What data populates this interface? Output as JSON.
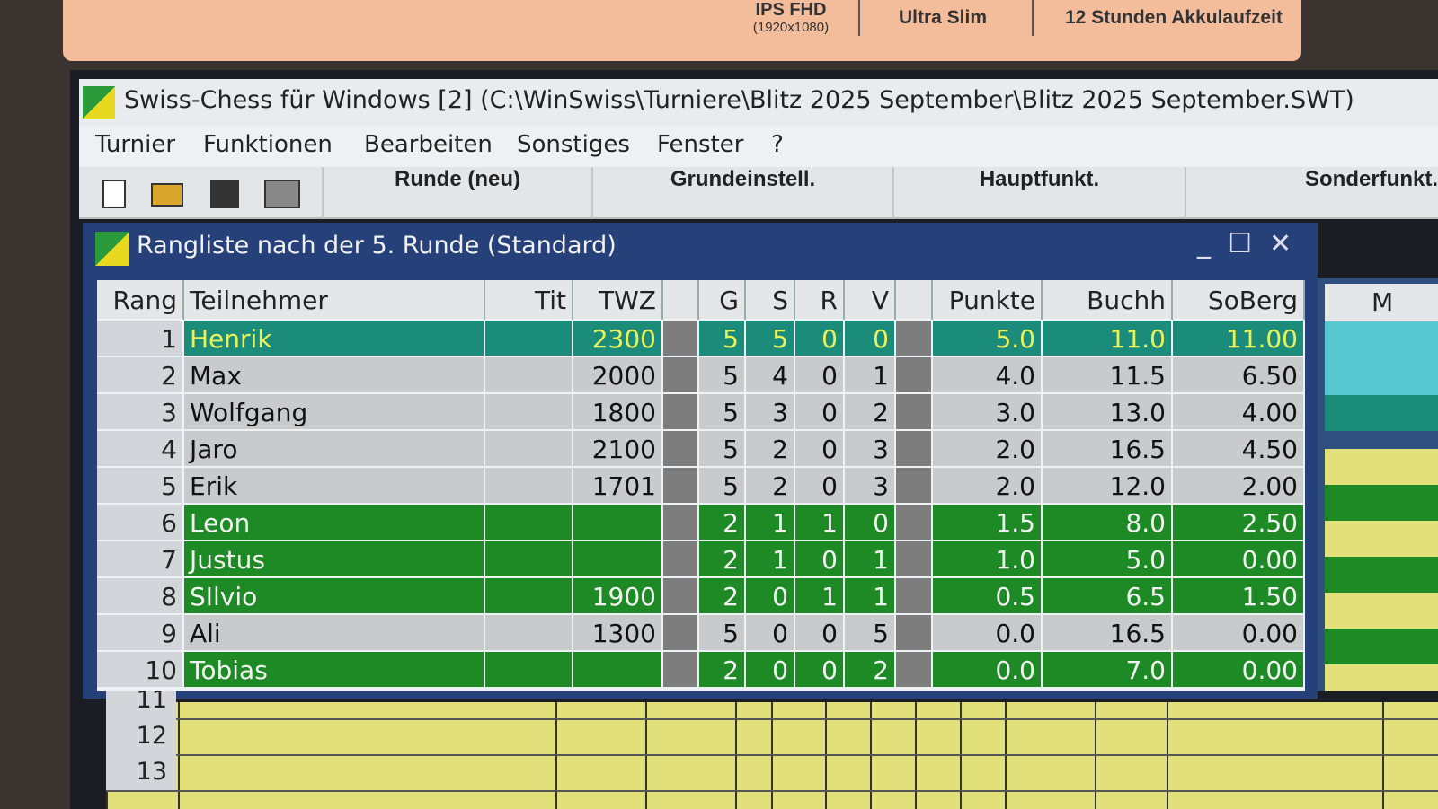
{
  "sticker": {
    "display": "IPS FHD",
    "resolution": "(1920x1080)",
    "feature": "Ultra Slim",
    "battery": "12 Stunden Akkulaufzeit"
  },
  "app": {
    "title": "Swiss-Chess für Windows  [2]  (C:\\WinSwiss\\Turniere\\Blitz 2025 September\\Blitz 2025 September.SWT)",
    "menu": [
      "Turnier",
      "Funktionen",
      "Bearbeiten",
      "Sonstiges",
      "Fenster",
      "?"
    ],
    "toolbar": [
      "Runde (neu)",
      "Grundeinstell.",
      "Hauptfunkt.",
      "Sonderfunkt."
    ]
  },
  "window": {
    "title": "Rangliste nach der 5. Runde (Standard)",
    "header": {
      "rang": "Rang",
      "name": "Teilnehmer",
      "tit": "Tit",
      "twz": "TWZ",
      "g": "G",
      "s": "S",
      "r": "R",
      "v": "V",
      "punkte": "Punkte",
      "buchh": "Buchh",
      "soberg": "SoBerg"
    },
    "rows": [
      {
        "rang": 1,
        "name": "Henrik",
        "twz": 2300,
        "g": 5,
        "s": 5,
        "r": 0,
        "v": 0,
        "punkte": "5.0",
        "buchh": "11.0",
        "soberg": "11.00"
      },
      {
        "rang": 2,
        "name": "Max",
        "twz": 2000,
        "g": 5,
        "s": 4,
        "r": 0,
        "v": 1,
        "punkte": "4.0",
        "buchh": "11.5",
        "soberg": "6.50"
      },
      {
        "rang": 3,
        "name": "Wolfgang",
        "twz": 1800,
        "g": 5,
        "s": 3,
        "r": 0,
        "v": 2,
        "punkte": "3.0",
        "buchh": "13.0",
        "soberg": "4.00"
      },
      {
        "rang": 4,
        "name": "Jaro",
        "twz": 2100,
        "g": 5,
        "s": 2,
        "r": 0,
        "v": 3,
        "punkte": "2.0",
        "buchh": "16.5",
        "soberg": "4.50"
      },
      {
        "rang": 5,
        "name": "Erik",
        "twz": 1701,
        "g": 5,
        "s": 2,
        "r": 0,
        "v": 3,
        "punkte": "2.0",
        "buchh": "12.0",
        "soberg": "2.00"
      },
      {
        "rang": 6,
        "name": "Leon",
        "g": 2,
        "s": 1,
        "r": 1,
        "v": 0,
        "punkte": "1.5",
        "buchh": "8.0",
        "soberg": "2.50"
      },
      {
        "rang": 7,
        "name": "Justus",
        "g": 2,
        "s": 1,
        "r": 0,
        "v": 1,
        "punkte": "1.0",
        "buchh": "5.0",
        "soberg": "0.00"
      },
      {
        "rang": 8,
        "name": "SIlvio",
        "twz": 1900,
        "g": 2,
        "s": 0,
        "r": 1,
        "v": 1,
        "punkte": "0.5",
        "buchh": "6.5",
        "soberg": "1.50"
      },
      {
        "rang": 9,
        "name": "Ali",
        "twz": 1300,
        "g": 5,
        "s": 0,
        "r": 0,
        "v": 5,
        "punkte": "0.0",
        "buchh": "16.5",
        "soberg": "0.00"
      },
      {
        "rang": 10,
        "name": "Tobias",
        "g": 2,
        "s": 0,
        "r": 0,
        "v": 2,
        "punkte": "0.0",
        "buchh": "7.0",
        "soberg": "0.00"
      }
    ]
  },
  "side_panel": {
    "header": "M"
  },
  "background_rows": [
    11,
    12,
    13
  ]
}
